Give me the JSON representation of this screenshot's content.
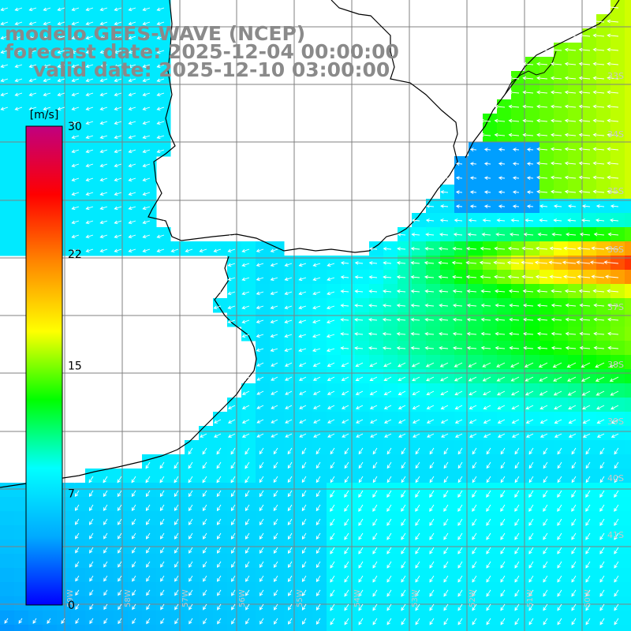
{
  "title": {
    "model": "modelo GEFS-WAVE (NCEP)",
    "forecast": "forecast date: 2025-12-04 00:00:00",
    "valid": "valid date: 2025-12-10 03:00:00"
  },
  "colorbar": {
    "unit": "[m/s]",
    "min": 0,
    "max": 30,
    "ticks": [
      {
        "value": 30,
        "label": "30"
      },
      {
        "value": 22,
        "label": "22"
      },
      {
        "value": 15,
        "label": "15"
      },
      {
        "value": 7,
        "label": "7"
      },
      {
        "value": 0,
        "label": "0"
      }
    ],
    "colors": [
      "#0000ff",
      "#00aaff",
      "#00ffff",
      "#00ff00",
      "#ffff00",
      "#ff8800",
      "#ff0000",
      "#c00080"
    ]
  },
  "map": {
    "lon_range": [
      -60,
      -49
    ],
    "lat_range": [
      -41.5,
      -31.5
    ],
    "lat_labels": [
      "33S",
      "34S",
      "35S",
      "36S",
      "37S",
      "38S",
      "39S",
      "40S",
      "41S"
    ],
    "lon_labels": [
      "59W",
      "58W",
      "57W",
      "56W",
      "55W",
      "54W",
      "53W",
      "52W",
      "51W",
      "50W"
    ],
    "coast_color": "#000000",
    "grid_color": "#808080"
  }
}
